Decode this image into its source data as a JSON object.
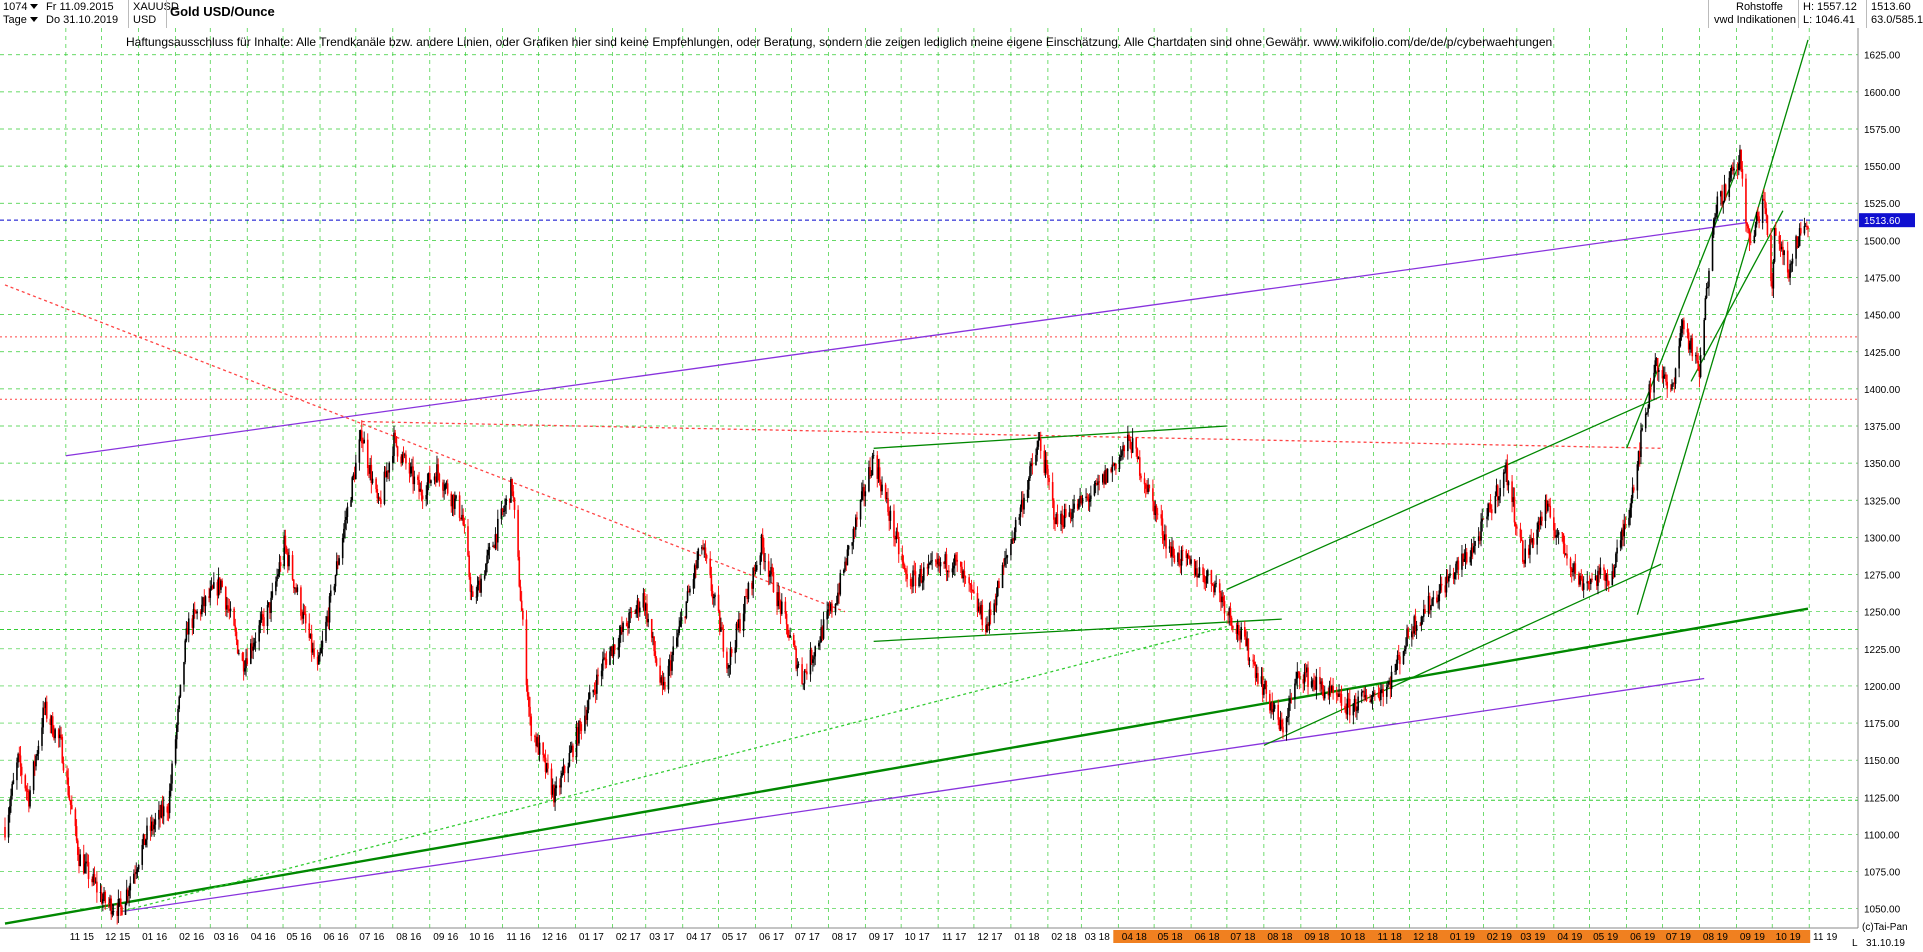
{
  "header": {
    "count": "1074",
    "start_label": "Fr 11.09.2015",
    "period": "Tage",
    "end_label": "Do 31.10.2019",
    "symbol": "XAUUSD",
    "currency": "USD",
    "title": "Gold USD/Ounce",
    "category": "Rohstoffe",
    "source": "vwd Indikationen",
    "high": "H: 1557.12",
    "low": "L: 1046.41",
    "last": "1513.60",
    "range": "63.0/585.1"
  },
  "disclaimer": "Haftungsausschluss für Inhalte: Alle Trendkanäle bzw. andere Linien, oder Grafiken hier sind keine Empfehlungen, oder Beratung, sondern die zeigen lediglich meine eigene Einschätzung. Alle Chartdaten sind ohne Gewähr.  www.wikifolio.com/de/de/p/cyberwaehrungen",
  "footer": {
    "copyright": "(c)Tai-Pan",
    "end_date": "31.10.19",
    "marker": "L"
  },
  "colors": {
    "up": "#000000",
    "down": "#ff0000",
    "grid": "#33cc33",
    "trend": "#008800",
    "channel": "#8833dd",
    "price_line": "#0000cc",
    "price_box": "#1010d0",
    "highlight_axis": "#f08020"
  },
  "chart_data": {
    "type": "candlestick",
    "title": "Gold USD/Ounce",
    "ylim": [
      1037,
      1643
    ],
    "y_ticks": [
      1050,
      1075,
      1100,
      1125,
      1150,
      1175,
      1200,
      1225,
      1250,
      1275,
      1300,
      1325,
      1350,
      1375,
      1400,
      1425,
      1450,
      1475,
      1500,
      1525,
      1550,
      1575,
      1600,
      1625
    ],
    "x_ticks": [
      "11 15",
      "12 15",
      "01 16",
      "02 16",
      "03 16",
      "04 16",
      "05 16",
      "06 16",
      "07 16",
      "08 16",
      "09 16",
      "10 16",
      "11 16",
      "12 16",
      "01 17",
      "02 17",
      "03 17",
      "04 17",
      "05 17",
      "06 17",
      "07 17",
      "08 17",
      "09 17",
      "10 17",
      "11 17",
      "12 17",
      "01 18",
      "02 18",
      "03 18",
      "04 18",
      "05 18",
      "06 18",
      "07 18",
      "08 18",
      "09 18",
      "10 18",
      "11 18",
      "12 18",
      "01 19",
      "02 19",
      "03 19",
      "04 19",
      "05 19",
      "06 19",
      "07 19",
      "08 19",
      "09 19",
      "10 19",
      "11 19"
    ],
    "highlighted_ticks": [
      "04 18",
      "05 18",
      "06 18",
      "07 18",
      "08 18",
      "09 18",
      "10 18",
      "11 18",
      "12 18",
      "01 19",
      "02 19",
      "03 19",
      "04 19",
      "05 19",
      "06 19",
      "07 19",
      "08 19",
      "09 19",
      "10 19"
    ],
    "price_path": [
      [
        "2015-09-11",
        1105
      ],
      [
        "2015-09-22",
        1150
      ],
      [
        "2015-10-01",
        1125
      ],
      [
        "2015-10-14",
        1185
      ],
      [
        "2015-10-28",
        1160
      ],
      [
        "2015-11-12",
        1085
      ],
      [
        "2015-12-03",
        1055
      ],
      [
        "2015-12-17",
        1050
      ],
      [
        "2016-01-08",
        1100
      ],
      [
        "2016-01-26",
        1120
      ],
      [
        "2016-02-11",
        1240
      ],
      [
        "2016-03-10",
        1270
      ],
      [
        "2016-03-28",
        1215
      ],
      [
        "2016-04-21",
        1255
      ],
      [
        "2016-05-02",
        1295
      ],
      [
        "2016-05-30",
        1210
      ],
      [
        "2016-06-15",
        1280
      ],
      [
        "2016-07-06",
        1370
      ],
      [
        "2016-07-20",
        1320
      ],
      [
        "2016-08-02",
        1365
      ],
      [
        "2016-08-24",
        1330
      ],
      [
        "2016-09-07",
        1345
      ],
      [
        "2016-09-28",
        1315
      ],
      [
        "2016-10-07",
        1255
      ],
      [
        "2016-11-09",
        1335
      ],
      [
        "2016-11-24",
        1175
      ],
      [
        "2016-12-15",
        1125
      ],
      [
        "2017-01-24",
        1215
      ],
      [
        "2017-02-27",
        1260
      ],
      [
        "2017-03-15",
        1195
      ],
      [
        "2017-04-17",
        1295
      ],
      [
        "2017-05-09",
        1215
      ],
      [
        "2017-06-06",
        1295
      ],
      [
        "2017-07-10",
        1205
      ],
      [
        "2017-08-08",
        1260
      ],
      [
        "2017-09-08",
        1355
      ],
      [
        "2017-10-06",
        1270
      ],
      [
        "2017-11-14",
        1285
      ],
      [
        "2017-12-12",
        1240
      ],
      [
        "2018-01-25",
        1365
      ],
      [
        "2018-02-08",
        1310
      ],
      [
        "2018-03-12",
        1330
      ],
      [
        "2018-04-11",
        1365
      ],
      [
        "2018-05-15",
        1290
      ],
      [
        "2018-06-20",
        1270
      ],
      [
        "2018-07-18",
        1225
      ],
      [
        "2018-08-16",
        1170
      ],
      [
        "2018-08-31",
        1210
      ],
      [
        "2018-10-10",
        1185
      ],
      [
        "2018-11-13",
        1200
      ],
      [
        "2018-12-03",
        1240
      ],
      [
        "2019-01-25",
        1295
      ],
      [
        "2019-02-20",
        1345
      ],
      [
        "2019-03-07",
        1285
      ],
      [
        "2019-03-25",
        1320
      ],
      [
        "2019-04-23",
        1270
      ],
      [
        "2019-05-20",
        1275
      ],
      [
        "2019-06-03",
        1320
      ],
      [
        "2019-06-25",
        1420
      ],
      [
        "2019-07-08",
        1395
      ],
      [
        "2019-07-18",
        1445
      ],
      [
        "2019-08-01",
        1410
      ],
      [
        "2019-08-13",
        1520
      ],
      [
        "2019-08-26",
        1540
      ],
      [
        "2019-09-04",
        1555
      ],
      [
        "2019-09-12",
        1495
      ],
      [
        "2019-09-24",
        1530
      ],
      [
        "2019-10-01",
        1465
      ],
      [
        "2019-10-03",
        1510
      ],
      [
        "2019-10-15",
        1480
      ],
      [
        "2019-10-24",
        1505
      ],
      [
        "2019-10-31",
        1513.6
      ]
    ],
    "last_price": 1513.6,
    "horizontal_levels": [
      {
        "value": 1513.6,
        "style": "dashed",
        "color": "#0000cc"
      },
      {
        "value": 1393,
        "style": "dotted",
        "color": "#ff4444"
      },
      {
        "value": 1435,
        "style": "dotted",
        "color": "#ff4444"
      },
      {
        "value": 1238,
        "style": "dashed",
        "color": "#33cc33"
      },
      {
        "value": 1123,
        "style": "dashed",
        "color": "#33cc33"
      }
    ],
    "trend_lines": [
      {
        "from": [
          "2015-09-11",
          1040
        ],
        "to": [
          "2019-10-31",
          1252
        ],
        "color": "#008800",
        "style": "solid"
      },
      {
        "from": [
          "2015-12-17",
          1048
        ],
        "to": [
          "2019-08-05",
          1205
        ],
        "color": "#8833dd",
        "style": "solid"
      },
      {
        "from": [
          "2015-11-01",
          1355
        ],
        "to": [
          "2019-09-10",
          1512
        ],
        "color": "#8833dd",
        "style": "solid"
      },
      {
        "from": [
          "2015-12-17",
          1048
        ],
        "to": [
          "2018-07-01",
          1240
        ],
        "color": "#33cc33",
        "style": "dotted"
      },
      {
        "from": [
          "2015-09-11",
          1470
        ],
        "to": [
          "2017-08-15",
          1250
        ],
        "color": "#ff4444",
        "style": "dotted"
      },
      {
        "from": [
          "2016-07-06",
          1378
        ],
        "to": [
          "2019-06-30",
          1360
        ],
        "color": "#ff4444",
        "style": "dotted"
      },
      {
        "from": [
          "2017-09-08",
          1360
        ],
        "to": [
          "2018-07-01",
          1375
        ],
        "color": "#008800",
        "style": "solid"
      },
      {
        "from": [
          "2017-09-08",
          1230
        ],
        "to": [
          "2018-08-16",
          1245
        ],
        "color": "#008800",
        "style": "solid"
      },
      {
        "from": [
          "2018-07-01",
          1265
        ],
        "to": [
          "2019-06-30",
          1395
        ],
        "color": "#008800",
        "style": "solid"
      },
      {
        "from": [
          "2018-08-01",
          1160
        ],
        "to": [
          "2019-06-30",
          1282
        ],
        "color": "#008800",
        "style": "solid"
      },
      {
        "from": [
          "2019-06-01",
          1360
        ],
        "to": [
          "2019-09-05",
          1555
        ],
        "color": "#008800",
        "style": "solid"
      },
      {
        "from": [
          "2019-06-10",
          1248
        ],
        "to": [
          "2019-10-31",
          1635
        ],
        "color": "#008800",
        "style": "solid"
      },
      {
        "from": [
          "2019-07-25",
          1405
        ],
        "to": [
          "2019-10-10",
          1520
        ],
        "color": "#008800",
        "style": "solid"
      }
    ]
  }
}
